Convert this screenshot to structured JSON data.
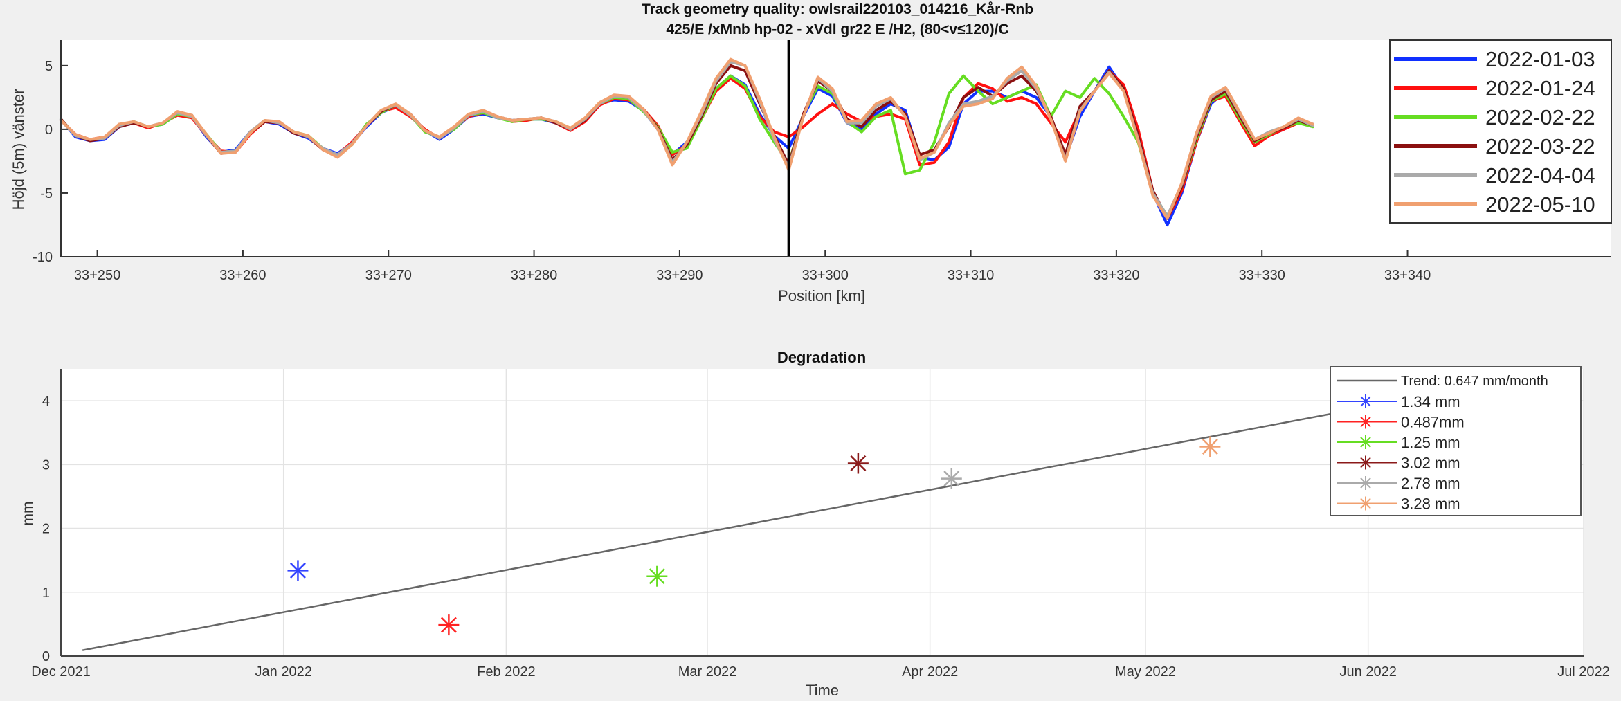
{
  "window": {
    "title_line1": "Track geometry quality: owlsrail220103_014216_Kår-Rnb",
    "title_line2": "425/E /xMnb hp-02 - xVdl gr22 E /H2, (80<v≤120)/C"
  },
  "chart_data": [
    {
      "type": "line",
      "title": "",
      "xlabel": "Position [km]",
      "ylabel": "Höjd (5m) vänster",
      "xlim": [
        247.5,
        354
      ],
      "ylim": [
        -10,
        7
      ],
      "xticks": [
        250,
        260,
        270,
        280,
        290,
        300,
        310,
        320,
        330,
        340
      ],
      "xtick_labels": [
        "33+250",
        "33+260",
        "33+270",
        "33+280",
        "33+290",
        "33+300",
        "33+310",
        "33+320",
        "33+330",
        "33+340"
      ],
      "yticks": [
        -10,
        -5,
        0,
        5
      ],
      "ytick_labels": [
        "-10",
        "-5",
        "0",
        "5"
      ],
      "grid": false,
      "legend_position": "top-right",
      "marker_line_x": 297.5,
      "x": [
        247.5,
        248.5,
        249.5,
        250.5,
        251.5,
        252.5,
        253.5,
        254.5,
        255.5,
        256.5,
        257.5,
        258.5,
        259.5,
        260.5,
        261.5,
        262.5,
        263.5,
        264.5,
        265.5,
        266.5,
        267.5,
        268.5,
        269.5,
        270.5,
        271.5,
        272.5,
        273.5,
        274.5,
        275.5,
        276.5,
        277.5,
        278.5,
        279.5,
        280.5,
        281.5,
        282.5,
        283.5,
        284.5,
        285.5,
        286.5,
        287.5,
        288.5,
        289.5,
        290.5,
        291.5,
        292.5,
        293.5,
        294.5,
        295.5,
        296.5,
        297.5,
        298.5,
        299.5,
        300.5,
        301.5,
        302.5,
        303.5,
        304.5,
        305.5,
        306.5,
        307.5,
        308.5,
        309.5,
        310.5,
        311.5,
        312.5,
        313.5,
        314.5,
        315.5,
        316.5,
        317.5,
        318.5,
        319.5,
        320.5,
        321.5,
        322.5,
        323.5,
        324.5,
        325.5,
        326.5,
        327.5,
        328.5,
        329.5,
        330.5,
        331.5,
        332.5,
        333.5
      ],
      "series": [
        {
          "name": "2022-01-03",
          "color": "#1030ff",
          "width": 4,
          "values": [
            0.8,
            -0.6,
            -0.9,
            -0.8,
            0.2,
            0.5,
            0.2,
            0.4,
            1.2,
            1.0,
            -0.6,
            -1.8,
            -1.6,
            -0.2,
            0.6,
            0.4,
            -0.3,
            -0.7,
            -1.5,
            -1.9,
            -1.1,
            0.2,
            1.3,
            1.8,
            1.2,
            -0.1,
            -0.8,
            0.0,
            1.0,
            1.2,
            0.9,
            0.7,
            0.8,
            0.8,
            0.5,
            0.0,
            0.7,
            2.0,
            2.3,
            2.2,
            1.5,
            0.0,
            -2.0,
            -1.0,
            1.0,
            3.2,
            4.2,
            3.5,
            1.2,
            -0.5,
            -1.5,
            1.0,
            3.2,
            2.6,
            0.5,
            0.0,
            1.2,
            2.0,
            1.5,
            -2.2,
            -2.4,
            -1.4,
            2.0,
            3.0,
            3.0,
            2.5,
            3.0,
            2.5,
            1.0,
            -2.3,
            1.0,
            3.0,
            4.9,
            3.2,
            -0.5,
            -5.0,
            -7.5,
            -5.0,
            -1.0,
            2.0,
            3.0,
            1.0,
            -1.0,
            -0.5,
            0.0,
            0.6,
            0.4
          ]
        },
        {
          "name": "2022-01-24",
          "color": "#ff1010",
          "width": 4,
          "values": [
            0.7,
            -0.4,
            -0.8,
            -0.6,
            0.3,
            0.5,
            0.1,
            0.5,
            1.1,
            0.9,
            -0.5,
            -1.7,
            -1.8,
            -0.4,
            0.6,
            0.5,
            -0.2,
            -0.6,
            -1.6,
            -2.0,
            -1.0,
            0.3,
            1.4,
            1.7,
            1.0,
            0.0,
            -0.7,
            0.1,
            1.0,
            1.3,
            1.0,
            0.6,
            0.7,
            0.9,
            0.5,
            -0.1,
            0.6,
            1.9,
            2.4,
            2.3,
            1.6,
            0.3,
            -2.0,
            -1.2,
            0.8,
            3.0,
            4.0,
            3.2,
            1.0,
            -0.2,
            -0.6,
            0.2,
            1.2,
            2.0,
            1.2,
            0.6,
            1.0,
            1.2,
            0.8,
            -2.8,
            -2.6,
            -1.0,
            2.5,
            3.6,
            3.2,
            2.2,
            2.5,
            2.0,
            0.5,
            -1.0,
            1.5,
            3.0,
            4.6,
            3.5,
            0.0,
            -4.8,
            -7.0,
            -4.8,
            -1.0,
            2.2,
            2.6,
            0.6,
            -1.3,
            -0.5,
            0.0,
            0.5,
            0.3
          ]
        },
        {
          "name": "2022-02-22",
          "color": "#66dd22",
          "width": 4,
          "values": [
            0.8,
            -0.5,
            -0.8,
            -0.7,
            0.3,
            0.6,
            0.2,
            0.4,
            1.2,
            1.0,
            -0.4,
            -1.8,
            -1.7,
            -0.3,
            0.7,
            0.5,
            -0.2,
            -0.5,
            -1.5,
            -2.1,
            -1.2,
            0.4,
            1.3,
            1.9,
            1.1,
            -0.2,
            -0.6,
            0.0,
            1.1,
            1.3,
            0.9,
            0.6,
            0.8,
            0.8,
            0.6,
            0.1,
            0.8,
            2.0,
            2.5,
            2.4,
            1.4,
            0.2,
            -1.8,
            -1.5,
            0.8,
            3.2,
            4.2,
            3.4,
            0.8,
            -1.0,
            -2.7,
            1.2,
            3.4,
            2.8,
            0.6,
            -0.2,
            1.0,
            1.5,
            -3.5,
            -3.2,
            -1.0,
            2.8,
            4.2,
            3.0,
            2.0,
            2.5,
            3.0,
            3.5,
            1.0,
            3.0,
            2.5,
            4.0,
            2.8,
            1.0,
            -1.0,
            -5.0,
            -6.8,
            -4.5,
            -0.8,
            2.2,
            2.8,
            0.8,
            -1.0,
            -0.4,
            0.2,
            0.5,
            0.2
          ]
        },
        {
          "name": "2022-03-22",
          "color": "#8b1010",
          "width": 4,
          "values": [
            0.8,
            -0.5,
            -0.9,
            -0.7,
            0.2,
            0.5,
            0.2,
            0.5,
            1.3,
            1.1,
            -0.5,
            -1.9,
            -1.7,
            -0.3,
            0.6,
            0.5,
            -0.3,
            -0.6,
            -1.6,
            -2.1,
            -1.1,
            0.3,
            1.4,
            1.9,
            1.2,
            -0.1,
            -0.7,
            0.1,
            1.1,
            1.4,
            1.0,
            0.7,
            0.8,
            0.9,
            0.5,
            0.0,
            0.7,
            2.0,
            2.6,
            2.5,
            1.6,
            0.1,
            -2.4,
            -1.2,
            1.0,
            3.6,
            5.0,
            4.6,
            2.0,
            -0.5,
            -2.8,
            1.2,
            3.8,
            3.0,
            0.8,
            0.2,
            1.5,
            2.2,
            1.2,
            -2.0,
            -1.6,
            0.2,
            2.5,
            3.3,
            2.6,
            3.6,
            4.2,
            3.0,
            1.0,
            -2.0,
            1.8,
            3.0,
            4.6,
            3.2,
            -0.5,
            -4.8,
            -7.0,
            -4.5,
            -0.6,
            2.3,
            3.0,
            1.0,
            -0.9,
            -0.3,
            0.1,
            0.7,
            0.3
          ]
        },
        {
          "name": "2022-04-04",
          "color": "#aaaaaa",
          "width": 4,
          "values": [
            0.7,
            -0.5,
            -0.8,
            -0.7,
            0.3,
            0.6,
            0.2,
            0.5,
            1.3,
            1.0,
            -0.5,
            -1.8,
            -1.7,
            -0.2,
            0.7,
            0.5,
            -0.2,
            -0.6,
            -1.5,
            -2.0,
            -1.1,
            0.3,
            1.5,
            1.9,
            1.1,
            -0.1,
            -0.7,
            0.1,
            1.1,
            1.4,
            0.9,
            0.7,
            0.8,
            0.9,
            0.6,
            0.0,
            0.8,
            2.0,
            2.6,
            2.5,
            1.5,
            0.0,
            -2.6,
            -1.0,
            1.2,
            3.8,
            5.3,
            5.0,
            2.2,
            -0.8,
            -3.0,
            1.0,
            4.0,
            3.0,
            0.5,
            0.5,
            1.8,
            2.4,
            1.0,
            -2.4,
            -1.8,
            0.5,
            2.0,
            2.2,
            2.6,
            3.8,
            4.6,
            3.2,
            0.8,
            -2.4,
            1.5,
            3.0,
            4.5,
            3.0,
            -0.8,
            -5.0,
            -6.8,
            -4.3,
            -0.4,
            2.5,
            3.2,
            1.2,
            -0.8,
            -0.2,
            0.2,
            0.8,
            0.3
          ]
        },
        {
          "name": "2022-05-10",
          "color": "#f0a070",
          "width": 4,
          "values": [
            0.7,
            -0.4,
            -0.8,
            -0.6,
            0.4,
            0.6,
            0.2,
            0.5,
            1.4,
            1.1,
            -0.4,
            -1.9,
            -1.8,
            -0.3,
            0.7,
            0.6,
            -0.2,
            -0.5,
            -1.6,
            -2.2,
            -1.2,
            0.3,
            1.5,
            2.0,
            1.2,
            -0.1,
            -0.6,
            0.2,
            1.2,
            1.5,
            1.0,
            0.7,
            0.8,
            0.9,
            0.6,
            0.1,
            0.9,
            2.1,
            2.7,
            2.6,
            1.6,
            0.0,
            -2.8,
            -1.0,
            1.4,
            4.0,
            5.5,
            5.0,
            2.4,
            -0.6,
            -3.2,
            1.0,
            4.1,
            3.2,
            0.6,
            0.7,
            2.0,
            2.5,
            1.0,
            -2.3,
            -1.8,
            0.3,
            1.8,
            2.0,
            2.4,
            4.0,
            4.9,
            3.4,
            0.8,
            -2.5,
            1.4,
            3.0,
            4.4,
            3.0,
            -0.9,
            -5.2,
            -7.0,
            -4.2,
            -0.3,
            2.6,
            3.3,
            1.3,
            -0.8,
            -0.3,
            0.2,
            0.9,
            0.4
          ]
        }
      ]
    },
    {
      "type": "scatter",
      "title": "Degradation",
      "xlabel": "Time",
      "ylabel": "mm",
      "xlim": [
        "2021-12-01",
        "2022-07-01"
      ],
      "ylim": [
        0,
        4.5
      ],
      "xticks": [
        "2021-12-01",
        "2022-01-01",
        "2022-02-01",
        "2022-03-01",
        "2022-04-01",
        "2022-05-01",
        "2022-06-01",
        "2022-07-01"
      ],
      "xtick_labels": [
        "Dec 2021",
        "Jan 2022",
        "Feb 2022",
        "Mar 2022",
        "Apr 2022",
        "May 2022",
        "Jun 2022",
        "Jul 2022"
      ],
      "yticks": [
        0,
        1,
        2,
        3,
        4
      ],
      "ytick_labels": [
        "0",
        "1",
        "2",
        "3",
        "4"
      ],
      "grid": true,
      "legend_position": "top-right",
      "trend": {
        "label": "Trend: 0.647 mm/month",
        "color": "#666666",
        "start": [
          "2021-12-04",
          0.09
        ],
        "end": [
          "2022-05-28",
          3.82
        ]
      },
      "points": [
        {
          "date": "2022-01-03",
          "value": 1.34,
          "label": "1.34 mm",
          "color": "#3344ff"
        },
        {
          "date": "2022-01-24",
          "value": 0.487,
          "label": "0.487mm",
          "color": "#ff2222"
        },
        {
          "date": "2022-02-22",
          "value": 1.25,
          "label": "1.25 mm",
          "color": "#66dd22"
        },
        {
          "date": "2022-03-22",
          "value": 3.02,
          "label": "3.02 mm",
          "color": "#8b1a1a"
        },
        {
          "date": "2022-04-04",
          "value": 2.78,
          "label": "2.78 mm",
          "color": "#aaaaaa"
        },
        {
          "date": "2022-05-10",
          "value": 3.28,
          "label": "3.28 mm",
          "color": "#f0a070"
        }
      ]
    }
  ]
}
